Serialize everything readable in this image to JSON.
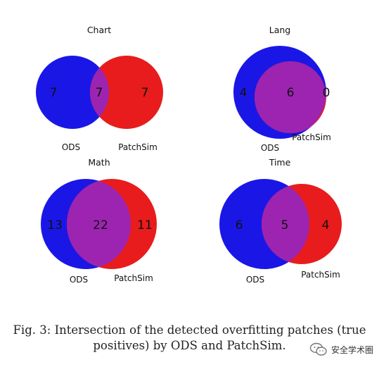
{
  "colors": {
    "ods": "#1a17e6",
    "patchsim": "#e81c1c",
    "overlap": "#9d24b0"
  },
  "panels": [
    {
      "title": "Chart",
      "left": "7",
      "middle": "7",
      "right": "7",
      "label_a": "ODS",
      "label_b": "PatchSim"
    },
    {
      "title": "Lang",
      "left": "4",
      "middle": "6",
      "right": "0",
      "label_a": "ODS",
      "label_b": "PatchSim"
    },
    {
      "title": "Math",
      "left": "13",
      "middle": "22",
      "right": "11",
      "label_a": "ODS",
      "label_b": "PatchSim"
    },
    {
      "title": "Time",
      "left": "6",
      "middle": "5",
      "right": "4",
      "label_a": "ODS",
      "label_b": "PatchSim"
    }
  ],
  "caption": {
    "line1": "Fig. 3: Intersection of the detected overfitting patches (true",
    "line2": "positives) by ODS and PatchSim."
  },
  "watermark": {
    "text": "安全学术圈",
    "icon": "wechat-icon"
  }
}
